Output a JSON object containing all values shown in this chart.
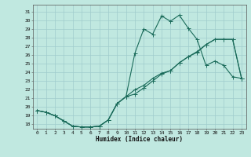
{
  "bg_color": "#c0e8e0",
  "grid_color": "#a0cccc",
  "line_color": "#1a6b5a",
  "xlabel": "Humidex (Indice chaleur)",
  "xlim": [
    -0.5,
    23.5
  ],
  "ylim": [
    17.5,
    31.8
  ],
  "xticks": [
    0,
    1,
    2,
    3,
    4,
    5,
    6,
    7,
    8,
    9,
    10,
    11,
    12,
    13,
    14,
    15,
    16,
    17,
    18,
    19,
    20,
    21,
    22,
    23
  ],
  "yticks": [
    18,
    19,
    20,
    21,
    22,
    23,
    24,
    25,
    26,
    27,
    28,
    29,
    30,
    31
  ],
  "line1_x": [
    0,
    1,
    2,
    3,
    4,
    5,
    6,
    7,
    8,
    9,
    10,
    11,
    12,
    13,
    14,
    15,
    16,
    17,
    18,
    19,
    20,
    21,
    22,
    23
  ],
  "line1_y": [
    19.6,
    19.4,
    19.0,
    18.4,
    17.8,
    17.7,
    17.7,
    17.8,
    18.5,
    20.4,
    21.2,
    26.2,
    29.0,
    28.4,
    30.5,
    29.9,
    30.6,
    29.1,
    27.8,
    24.8,
    25.3,
    24.8,
    23.5,
    23.3
  ],
  "line2_x": [
    0,
    1,
    2,
    3,
    4,
    5,
    6,
    7,
    8,
    9,
    10,
    11,
    12,
    13,
    14,
    15,
    16,
    17,
    18,
    19,
    20,
    21,
    22,
    23
  ],
  "line2_y": [
    19.6,
    19.4,
    19.0,
    18.4,
    17.8,
    17.7,
    17.7,
    17.8,
    18.5,
    20.4,
    21.2,
    22.0,
    22.5,
    23.3,
    23.9,
    24.2,
    25.1,
    25.8,
    26.4,
    27.2,
    27.8,
    27.8,
    27.8,
    23.3
  ],
  "line3_x": [
    0,
    1,
    2,
    3,
    4,
    5,
    6,
    7,
    8,
    9,
    10,
    11,
    12,
    13,
    14,
    15,
    16,
    17,
    18,
    19,
    20,
    21,
    22,
    23
  ],
  "line3_y": [
    19.6,
    19.4,
    19.0,
    18.4,
    17.8,
    17.7,
    17.7,
    17.8,
    18.5,
    20.4,
    21.2,
    21.5,
    22.2,
    23.0,
    23.8,
    24.2,
    25.1,
    25.8,
    26.3,
    27.2,
    27.8,
    27.8,
    27.8,
    23.3
  ]
}
